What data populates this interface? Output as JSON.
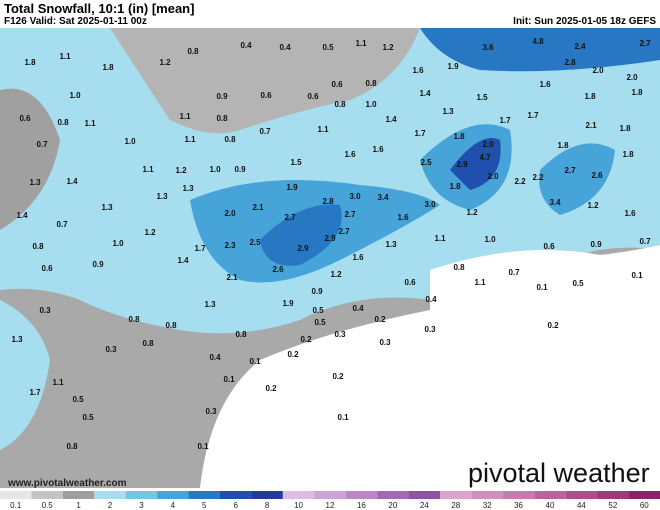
{
  "header": {
    "title": "Total Snowfall, 10:1 (in) [mean]",
    "valid": "F126 Valid: Sat 2025-01-11 00z",
    "init": "Init: Sun 2025-01-05 18z GEFS"
  },
  "website": "www.pivotalweather.com",
  "logo": "pivotal weather",
  "map_labels": [
    "1.8",
    "1.1",
    "1.8",
    "1.2",
    "0.8",
    "0.4",
    "0.4",
    "0.5",
    "1.1",
    "1.2",
    "1.6",
    "1.9",
    "3.6",
    "4.8",
    "2.4",
    "2.7",
    "2.8",
    "2.0",
    "2.0",
    "1.6",
    "1.8",
    "1.8",
    "1.0",
    "1.1",
    "0.6",
    "0.8",
    "0.7",
    "1.0",
    "1.1",
    "1.1",
    "0.9",
    "0.6",
    "0.6",
    "0.6",
    "0.8",
    "0.8",
    "1.0",
    "0.8",
    "0.7",
    "0.8",
    "1.1",
    "1.4",
    "1.4",
    "1.5",
    "1.3",
    "1.7",
    "1.7",
    "2.1",
    "1.8",
    "1.7",
    "1.8",
    "2.0",
    "4.7",
    "2.0",
    "2.9",
    "1.8",
    "1.8",
    "1.3",
    "1.4",
    "1.3",
    "0.7",
    "1.4",
    "1.0",
    "1.2",
    "1.1",
    "1.2",
    "1.3",
    "1.0",
    "0.9",
    "1.5",
    "1.6",
    "1.6",
    "1.8",
    "2.5",
    "2.2",
    "2.2",
    "2.7",
    "2.6",
    "3.4",
    "1.2",
    "1.6",
    "3.0",
    "1.9",
    "2.1",
    "2.0",
    "2.7",
    "3.0",
    "3.4",
    "2.8",
    "1.6",
    "2.7",
    "1.2",
    "1.3",
    "0.8",
    "0.6",
    "0.9",
    "1.7",
    "2.3",
    "2.5",
    "2.9",
    "2.9",
    "2.7",
    "1.6",
    "1.3",
    "1.1",
    "1.0",
    "0.6",
    "0.9",
    "0.7",
    "1.4",
    "2.1",
    "2.6",
    "1.2",
    "0.8",
    "0.7",
    "1.1",
    "0.1",
    "0.1",
    "0.5",
    "0.6",
    "0.4",
    "0.3",
    "0.9",
    "1.9",
    "1.3",
    "0.8",
    "0.8",
    "0.3",
    "0.5",
    "0.5",
    "0.4",
    "0.2",
    "0.3",
    "0.3",
    "0.2",
    "0.2",
    "0.8",
    "0.1",
    "0.4",
    "0.1",
    "0.2",
    "0.2",
    "0.1",
    "0.3",
    "0.1",
    "1.3",
    "0.3",
    "0.8",
    "1.1",
    "1.7",
    "0.5",
    "0.5",
    "0.8",
    "0.2"
  ],
  "legend": {
    "ticks": [
      0.1,
      0.5,
      1,
      2,
      3,
      4,
      5,
      6,
      8,
      10,
      12,
      16,
      20,
      24,
      28,
      32,
      36,
      40,
      44,
      52,
      60
    ],
    "colors": [
      "#e6e6e6",
      "#c4c4c4",
      "#9e9e9e",
      "#a6def0",
      "#74c5e6",
      "#47a4d8",
      "#2777c2",
      "#1f50ad",
      "#233b95",
      "#dcbde2",
      "#cda2d6",
      "#bb85c8",
      "#a767b9",
      "#9150a8",
      "#dba5cb",
      "#d28fbb",
      "#c77aab",
      "#ba649b",
      "#ab4f8b",
      "#9c3a7b",
      "#8c246b"
    ]
  }
}
